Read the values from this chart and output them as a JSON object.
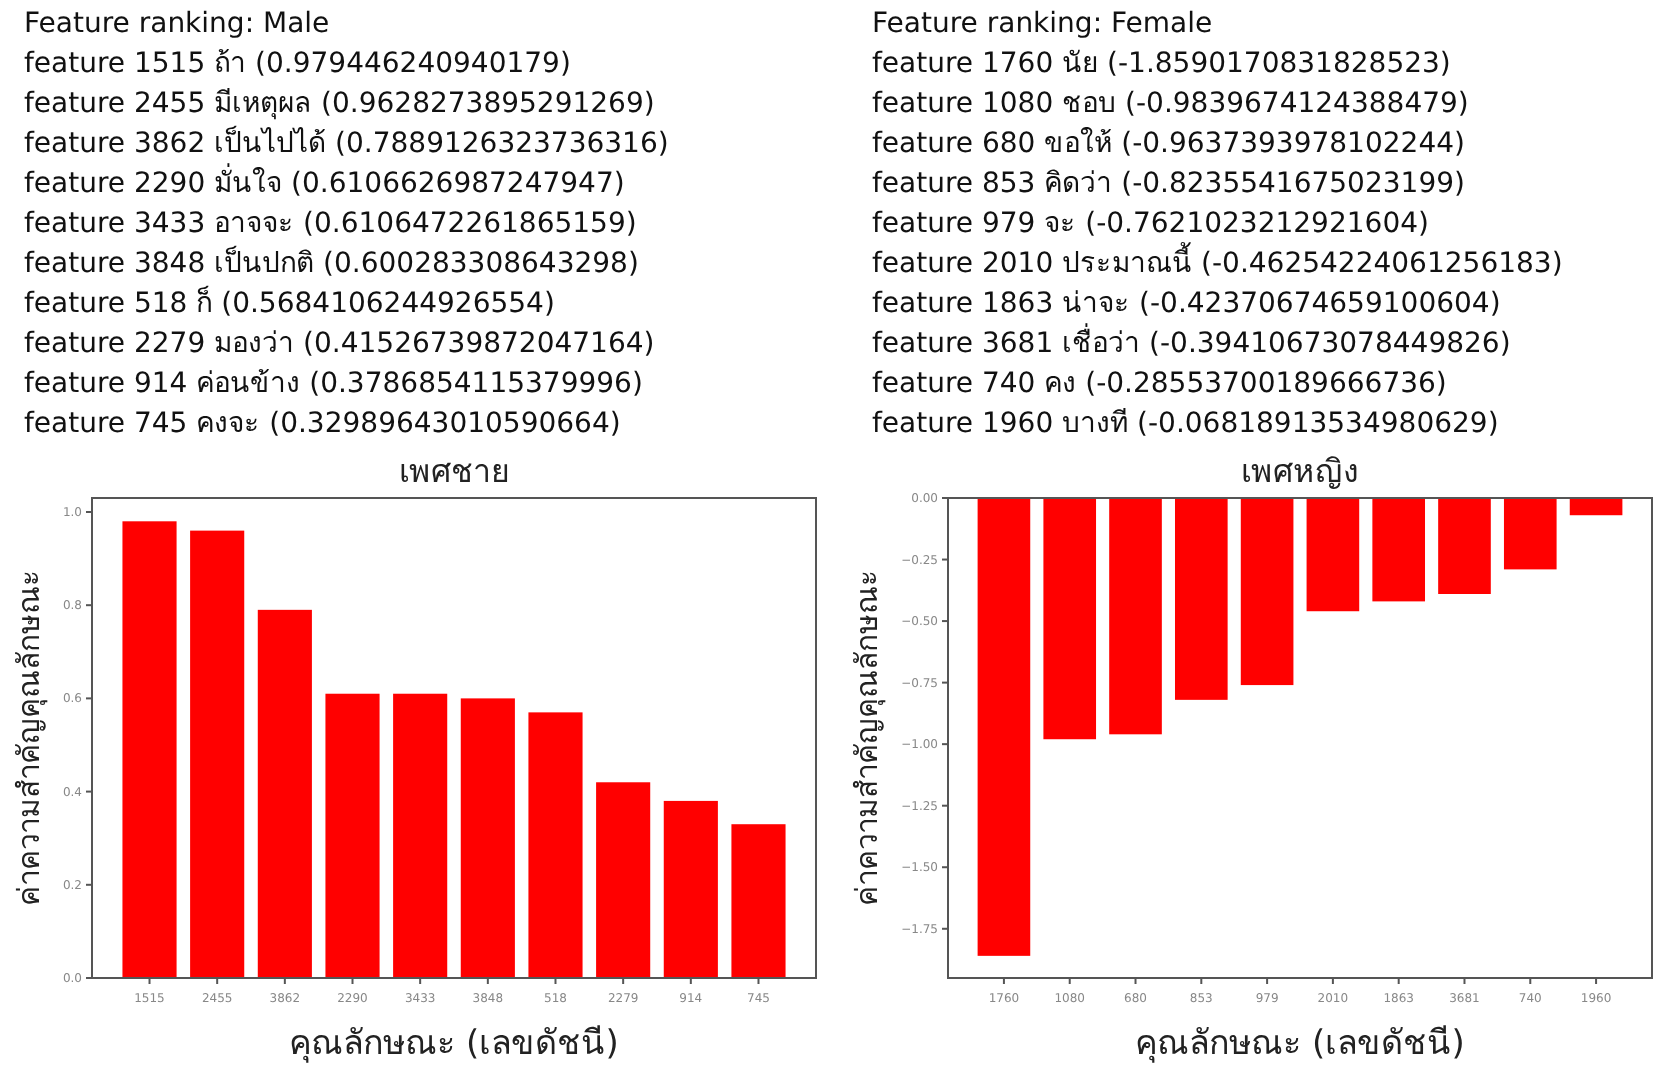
{
  "chart_data": [
    {
      "type": "other",
      "title": "Feature ranking: Male",
      "annotations": [
        "feature 1515 ถ้า (0.979446240940179)",
        "feature 2455 มีเหตุผล (0.9628273895291269)",
        "feature 3862 เป็นไปได้ (0.7889126323736316)",
        "feature 2290 มั่นใจ (0.6106626987247947)",
        "feature 3433 อาจจะ (0.6106472261865159)",
        "feature 3848 เป็นปกติ (0.600283308643298)",
        "feature 518 ก็ (0.5684106244926554)",
        "feature 2279 มองว่า (0.41526739872047164)",
        "feature 914 ค่อนข้าง (0.3786854115379996)",
        "feature 745 คงจะ (0.32989643010590664)"
      ]
    },
    {
      "type": "other",
      "title": "Feature ranking: Female",
      "annotations": [
        "feature 1760 นัย (-1.8590170831828523)",
        "feature 1080 ชอบ (-0.9839674124388479)",
        "feature 680 ขอให้ (-0.9637393978102244)",
        "feature 853 คิดว่า (-0.8235541675023199)",
        "feature 979 จะ (-0.7621023212921604)",
        "feature 2010 ประมาณนี้ (-0.46254224061256183)",
        "feature 1863 น่าจะ (-0.42370674659100604)",
        "feature 3681 เชื่อว่า (-0.39410673078449826)",
        "feature 740 คง (-0.28553700189666736)",
        "feature 1960 บางที (-0.06818913534980629)"
      ]
    },
    {
      "type": "bar",
      "title": "เพศชาย",
      "xlabel": "คุณลักษณะ (เลขดัชนี)",
      "ylabel": "ค่าความสำคัญคุณลักษณะ",
      "categories": [
        "1515",
        "2455",
        "3862",
        "2290",
        "3433",
        "3848",
        "518",
        "2279",
        "914",
        "745"
      ],
      "values": [
        0.98,
        0.96,
        0.79,
        0.61,
        0.61,
        0.6,
        0.57,
        0.42,
        0.38,
        0.33
      ],
      "color": "#ff0000",
      "ylim": [
        0,
        1.03
      ],
      "yticks": [
        {
          "value": 0,
          "label": "0.0"
        },
        {
          "value": 0.2,
          "label": "0.2"
        },
        {
          "value": 0.4,
          "label": "0.4"
        },
        {
          "value": 0.6,
          "label": "0.6"
        },
        {
          "value": 0.8,
          "label": "0.8"
        },
        {
          "value": 1,
          "label": "1.0"
        }
      ]
    },
    {
      "type": "bar",
      "title": "เพศหญิง",
      "xlabel": "คุณลักษณะ (เลขดัชนี)",
      "ylabel": "ค่าความสำคัญคุณลักษณะ",
      "categories": [
        "1760",
        "1080",
        "680",
        "853",
        "979",
        "2010",
        "1863",
        "3681",
        "740",
        "1960"
      ],
      "values": [
        -1.86,
        -0.98,
        -0.96,
        -0.82,
        -0.76,
        -0.46,
        -0.42,
        -0.39,
        -0.29,
        -0.07
      ],
      "color": "#ff0000",
      "ylim": [
        -1.95,
        0
      ],
      "yticks": [
        {
          "value": 0,
          "label": "0.00"
        },
        {
          "value": -0.25,
          "label": "−0.25"
        },
        {
          "value": -0.5,
          "label": "−0.50"
        },
        {
          "value": -0.75,
          "label": "−0.75"
        },
        {
          "value": -1,
          "label": "−1.00"
        },
        {
          "value": -1.25,
          "label": "−1.25"
        },
        {
          "value": -1.5,
          "label": "−1.50"
        },
        {
          "value": -1.75,
          "label": "−1.75"
        }
      ]
    }
  ]
}
